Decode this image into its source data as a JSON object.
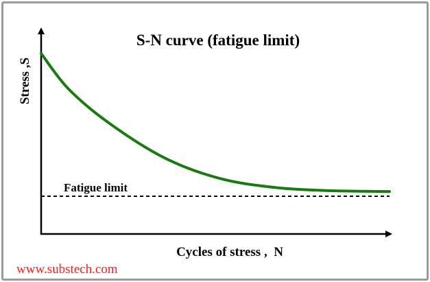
{
  "chart_data": {
    "type": "line",
    "title": "S-N curve (fatigue limit)",
    "xlabel": "Cycles of stress ,  N",
    "ylabel": "Stress ,S",
    "xlim": [
      0,
      100
    ],
    "ylim": [
      0,
      100
    ],
    "grid": false,
    "series": [
      {
        "name": "S-N curve",
        "color": "#1a7a10",
        "x": [
          0,
          7.9,
          19.7,
          35.4,
          51.2,
          66.9,
          82.7,
          100
        ],
        "y": [
          88,
          70.6,
          53.8,
          37.1,
          27.1,
          22.7,
          21.1,
          20.7
        ]
      }
    ],
    "annotations": [
      {
        "text": "Fatigue limit",
        "type": "dashed-hline",
        "y": 18.4
      }
    ]
  },
  "watermark": "www.substech.com",
  "colors": {
    "curve": "#1a7a10",
    "watermark": "#ff1a1a",
    "axis": "#000000"
  }
}
